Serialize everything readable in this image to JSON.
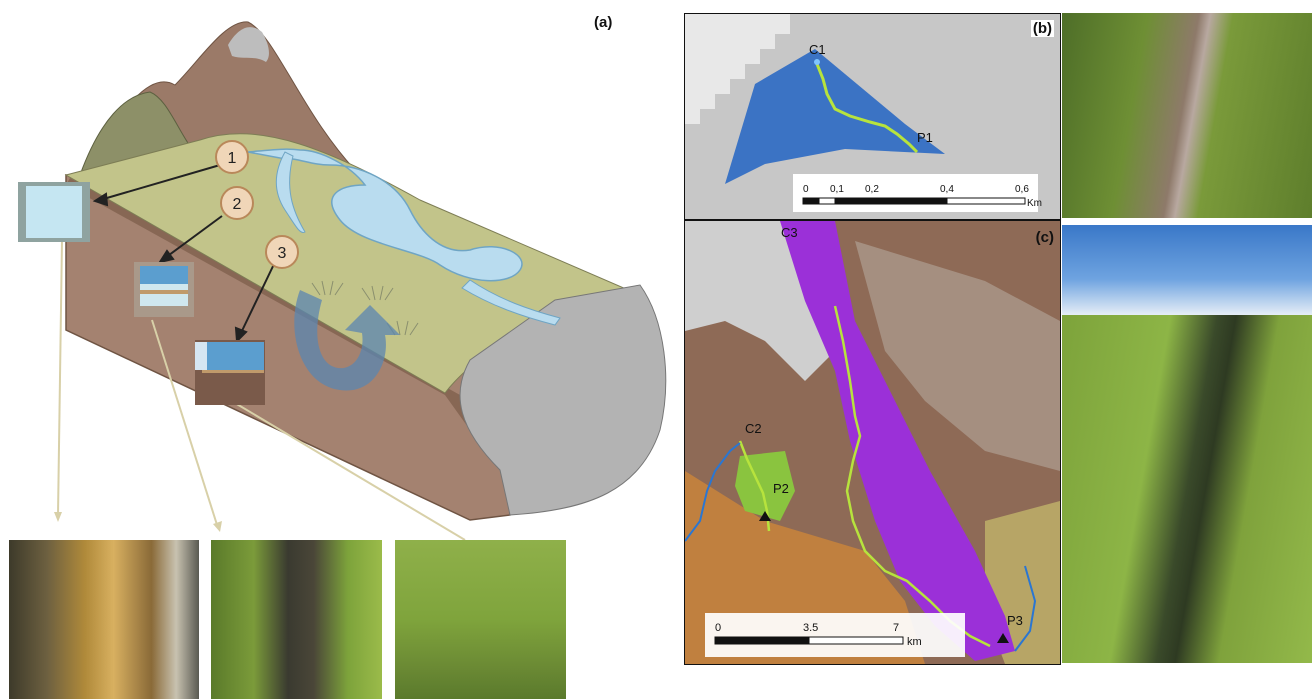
{
  "panels": {
    "a": "(a)",
    "b": "(b)",
    "c": "(c)"
  },
  "diagram_markers": [
    "1",
    "2",
    "3"
  ],
  "map_b": {
    "labels": {
      "start": "C1",
      "end": "P1"
    },
    "scale": {
      "ticks": [
        "0",
        "0,1",
        "0,2",
        "0,4",
        "0,6"
      ],
      "unit": "Km"
    }
  },
  "map_c": {
    "labels": {
      "c2": "C2",
      "c3": "C3",
      "p2": "P2",
      "p3": "P3"
    },
    "scale": {
      "ticks": [
        "0",
        "3.5",
        "7"
      ],
      "unit": "km"
    }
  },
  "colors": {
    "terrain": "#9a7a68",
    "meadow": "#c2c48a",
    "water": "#b9dcef",
    "map_blue": "#3b73c4",
    "map_purple": "#9b30d8",
    "map_green": "#8ac43f",
    "callout": "#f0d6b8"
  }
}
